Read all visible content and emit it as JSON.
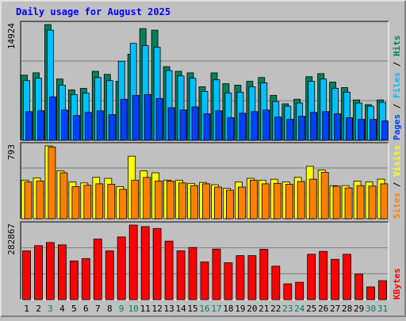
{
  "chart_data": {
    "type": "bar",
    "title": "Daily usage for August 2025",
    "days": [
      "1",
      "2",
      "3",
      "4",
      "5",
      "6",
      "7",
      "8",
      "9",
      "10",
      "11",
      "12",
      "13",
      "14",
      "15",
      "16",
      "17",
      "18",
      "19",
      "20",
      "21",
      "22",
      "23",
      "24",
      "25",
      "26",
      "27",
      "28",
      "29",
      "30",
      "31"
    ],
    "weekend_days": [
      "3",
      "9",
      "10",
      "16",
      "17",
      "23",
      "24",
      "30",
      "31"
    ],
    "colors": {
      "hits": "#00805c",
      "files": "#00c0ff",
      "pages": "#0040ff",
      "visits": "#ffff00",
      "sites": "#ff8000",
      "kbytes": "#ff0000",
      "weekday_label": "#000000",
      "weekend_label": "#00805c",
      "title": "#0000ff",
      "background": "#c0c0c0",
      "plot": "#c0c0c0",
      "grid": "#808080"
    },
    "panels": [
      {
        "name": "hits-files-pages",
        "ymax_label": "14924",
        "ymax": 14924,
        "series": [
          {
            "name": "Hits",
            "color": "#00805c",
            "values": [
              8400,
              8700,
              14924,
              7900,
              6500,
              6700,
              8900,
              8500,
              7600,
              11100,
              14400,
              14200,
              9500,
              8900,
              8700,
              6900,
              8700,
              7300,
              7100,
              7600,
              8100,
              5800,
              4700,
              5300,
              8200,
              8600,
              7500,
              6800,
              5200,
              4600,
              5200
            ]
          },
          {
            "name": "Files",
            "color": "#00c0ff",
            "values": [
              7700,
              8000,
              14200,
              7100,
              5900,
              6100,
              8100,
              7700,
              10200,
              12500,
              12200,
              12000,
              9000,
              8300,
              8000,
              6300,
              7800,
              6100,
              6200,
              6900,
              7400,
              5000,
              4400,
              4800,
              7600,
              7900,
              6700,
              6200,
              4800,
              4400,
              4900
            ]
          },
          {
            "name": "Pages",
            "color": "#0040ff",
            "values": [
              3700,
              3800,
              5600,
              3900,
              3200,
              3600,
              3800,
              3300,
              5300,
              5800,
              5900,
              5400,
              4200,
              3900,
              4300,
              3400,
              3800,
              2900,
              3500,
              3700,
              3900,
              3000,
              2700,
              3100,
              3600,
              3700,
              3400,
              2900,
              2700,
              2700,
              2500
            ]
          }
        ]
      },
      {
        "name": "visits-sites",
        "ymax_label": "793",
        "ymax": 793,
        "series": [
          {
            "name": "Visits",
            "color": "#ffff00",
            "values": [
              420,
              445,
              793,
              520,
              400,
              390,
              450,
              440,
              350,
              680,
              520,
              500,
              420,
              420,
              385,
              395,
              370,
              330,
              400,
              440,
              420,
              430,
              400,
              450,
              570,
              530,
              360,
              360,
              410,
              400,
              430
            ]
          },
          {
            "name": "Sites",
            "color": "#ff8000",
            "values": [
              400,
              410,
              780,
              500,
              350,
              365,
              380,
              375,
              320,
              420,
              450,
              410,
              410,
              390,
              360,
              380,
              345,
              310,
              345,
              420,
              380,
              385,
              375,
              405,
              430,
              505,
              355,
              335,
              360,
              355,
              380
            ]
          }
        ]
      },
      {
        "name": "kbytes",
        "ymax_label": "282867",
        "ymax": 282867,
        "series": [
          {
            "name": "KBytes",
            "color": "#ff0000",
            "values": [
              185000,
              205000,
              217000,
              208000,
              147000,
              156000,
              230000,
              185000,
              238000,
              282867,
              277000,
              270000,
              222000,
              185000,
              198000,
              143000,
              192000,
              140000,
              167000,
              167000,
              191000,
              127000,
              60000,
              66000,
              172000,
              183000,
              153000,
              172000,
              97000,
              48000,
              72000
            ]
          }
        ]
      }
    ],
    "legend": [
      {
        "panel": 0,
        "parts": [
          {
            "text": "Pages",
            "color": "#0040ff"
          },
          {
            "text": " / ",
            "color": "#000000"
          },
          {
            "text": "Files",
            "color": "#00c0ff"
          },
          {
            "text": " / ",
            "color": "#000000"
          },
          {
            "text": "Hits",
            "color": "#00805c"
          }
        ]
      },
      {
        "panel": 1,
        "parts": [
          {
            "text": "Sites",
            "color": "#ff8000"
          },
          {
            "text": " / ",
            "color": "#000000"
          },
          {
            "text": "Visits",
            "color": "#ffff00"
          }
        ]
      },
      {
        "panel": 2,
        "parts": [
          {
            "text": "KBytes",
            "color": "#ff0000"
          }
        ]
      }
    ]
  }
}
